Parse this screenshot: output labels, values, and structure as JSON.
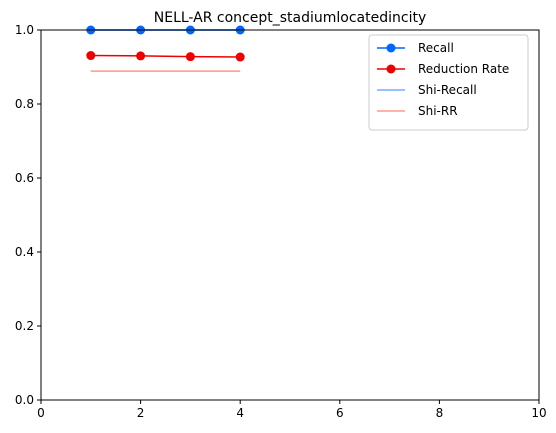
{
  "chart_data": {
    "type": "line",
    "title": "NELL-AR concept_stadiumlocatedincity",
    "xlabel": "",
    "ylabel": "",
    "xlim": [
      0,
      10
    ],
    "ylim": [
      0.0,
      1.0
    ],
    "xticks": [
      "0",
      "2",
      "4",
      "6",
      "8",
      "10"
    ],
    "yticks": [
      "0.0",
      "0.2",
      "0.4",
      "0.6",
      "0.8",
      "1.0"
    ],
    "grid": false,
    "legend_position": "top-right",
    "series": [
      {
        "name": "Recall",
        "color": "#0066ff",
        "marker": "circle",
        "points": [
          [
            1,
            1.0
          ],
          [
            2,
            1.0
          ],
          [
            3,
            1.0
          ],
          [
            4,
            1.0
          ]
        ]
      },
      {
        "name": "Reduction Rate",
        "color": "#ee0000",
        "marker": "circle",
        "points": [
          [
            1,
            0.931
          ],
          [
            2,
            0.93
          ],
          [
            3,
            0.928
          ],
          [
            4,
            0.927
          ]
        ]
      },
      {
        "name": "Shi-Recall",
        "color": "#77aaff",
        "marker": "none",
        "points": [
          [
            1,
            1.0
          ],
          [
            4,
            1.0
          ]
        ]
      },
      {
        "name": "Shi-RR",
        "color": "#ff9988",
        "marker": "none",
        "points": [
          [
            1,
            0.889
          ],
          [
            4,
            0.889
          ]
        ]
      }
    ]
  }
}
